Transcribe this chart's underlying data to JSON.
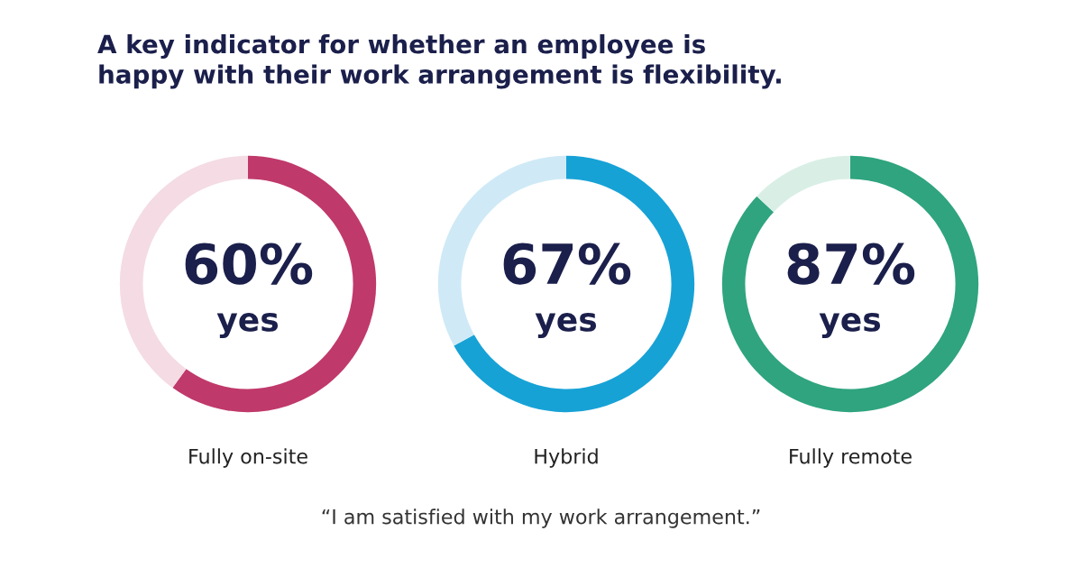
{
  "chart_data": [
    {
      "type": "donut",
      "title": "A key indicator for whether an employee is\nhappy with their work arrangement is flexibility.",
      "categories": [
        "yes",
        null
      ],
      "values": [
        60,
        40
      ],
      "colors": [
        "#c0396b",
        "#f4dbe4"
      ],
      "value_labels": [
        "60%",
        null
      ],
      "xlabel": "Fully on-site"
    },
    {
      "type": "donut",
      "categories": [
        "yes",
        null
      ],
      "values": [
        67,
        33
      ],
      "colors": [
        "#17a2d6",
        "#cfeaf6"
      ],
      "value_labels": [
        "67%",
        null
      ],
      "xlabel": "Hybrid",
      "annotations": [
        "“I am satisfied with my work arrangement.”"
      ]
    },
    {
      "type": "donut",
      "categories": [
        "yes",
        null
      ],
      "values": [
        87,
        13
      ],
      "colors": [
        "#2fa47f",
        "#d9efe6"
      ],
      "value_labels": [
        "87%",
        null
      ],
      "xlabel": "Fully remote"
    }
  ]
}
